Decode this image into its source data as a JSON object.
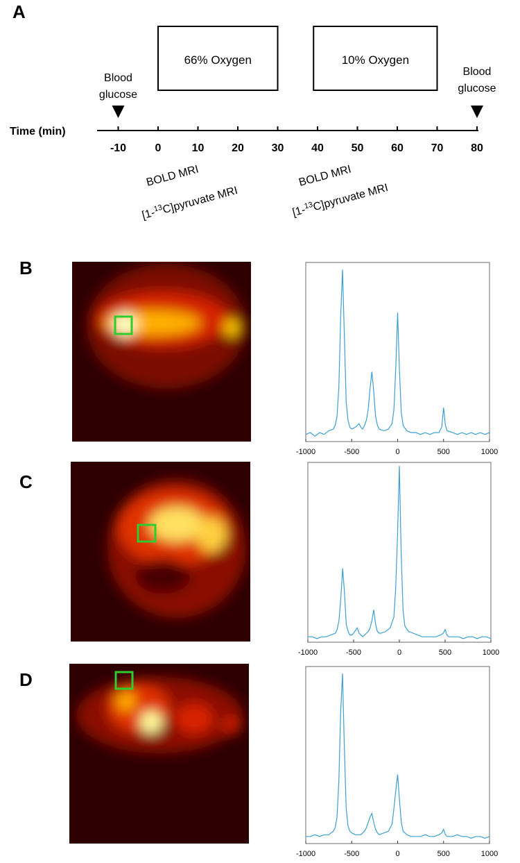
{
  "timeline": {
    "panel": "A",
    "axis_label": "Time (min)",
    "ticks": [
      -10,
      0,
      10,
      20,
      30,
      40,
      50,
      60,
      70,
      80
    ],
    "boxes": [
      {
        "label": "66% Oxygen",
        "start": 0,
        "end": 30
      },
      {
        "label": "10% Oxygen",
        "start": 39,
        "end": 70
      }
    ],
    "events": [
      {
        "label": [
          "Blood",
          "glucose"
        ],
        "time": -10
      },
      {
        "label": [
          "Blood",
          "glucose"
        ],
        "time": 80
      }
    ],
    "imaging": [
      {
        "bold": "BOLD MRI",
        "pyruvate": {
          "pre": "[1-",
          "sup": "13",
          "post": "C]pyruvate MRI"
        }
      },
      {
        "bold": "BOLD MRI",
        "pyruvate": {
          "pre": "[1-",
          "sup": "13",
          "post": "C]pyruvate MRI"
        }
      }
    ]
  },
  "chart_data": [
    {
      "type": "line",
      "panel": "B",
      "color": "#3a9fd4",
      "xlim": [
        -1000,
        1000
      ],
      "ylim": [
        0,
        100
      ],
      "xticks": [
        -1000,
        -500,
        0,
        500,
        1000
      ],
      "x": [
        -1000,
        -950,
        -900,
        -850,
        -800,
        -750,
        -700,
        -680,
        -660,
        -640,
        -620,
        -600,
        -580,
        -560,
        -540,
        -520,
        -500,
        -460,
        -440,
        -420,
        -400,
        -380,
        -360,
        -340,
        -320,
        -300,
        -280,
        -260,
        -240,
        -220,
        -200,
        -150,
        -100,
        -60,
        -40,
        -20,
        0,
        20,
        40,
        60,
        100,
        150,
        200,
        250,
        300,
        350,
        400,
        450,
        480,
        500,
        520,
        540,
        600,
        650,
        700,
        750,
        800,
        850,
        900,
        950,
        1000
      ],
      "values": [
        4,
        5,
        3,
        5,
        4,
        6,
        7,
        9,
        14,
        30,
        70,
        96,
        60,
        22,
        12,
        8,
        7,
        8,
        9,
        10,
        8,
        7,
        9,
        12,
        18,
        30,
        39,
        28,
        14,
        9,
        7,
        6,
        7,
        10,
        18,
        42,
        72,
        40,
        16,
        9,
        6,
        5,
        5,
        4,
        5,
        4,
        5,
        5,
        8,
        19,
        9,
        6,
        5,
        4,
        5,
        4,
        5,
        4,
        5,
        4,
        5
      ]
    },
    {
      "type": "line",
      "panel": "C",
      "color": "#3a9fd4",
      "xlim": [
        -1000,
        1000
      ],
      "ylim": [
        0,
        100
      ],
      "xticks": [
        -1000,
        -500,
        0,
        500,
        1000
      ],
      "x": [
        -1000,
        -950,
        -900,
        -850,
        -800,
        -750,
        -700,
        -680,
        -660,
        -640,
        -620,
        -600,
        -580,
        -560,
        -540,
        -520,
        -500,
        -460,
        -440,
        -420,
        -400,
        -380,
        -360,
        -340,
        -320,
        -300,
        -280,
        -260,
        -240,
        -220,
        -200,
        -150,
        -100,
        -60,
        -40,
        -20,
        0,
        20,
        40,
        60,
        100,
        150,
        200,
        250,
        300,
        350,
        400,
        450,
        480,
        500,
        520,
        540,
        600,
        650,
        700,
        750,
        800,
        850,
        900,
        950,
        1000
      ],
      "values": [
        3,
        3,
        2,
        3,
        3,
        4,
        5,
        7,
        12,
        24,
        41,
        28,
        10,
        6,
        4,
        4,
        5,
        8,
        5,
        4,
        3,
        4,
        5,
        6,
        8,
        12,
        18,
        10,
        6,
        5,
        5,
        6,
        8,
        14,
        30,
        60,
        98,
        50,
        18,
        9,
        6,
        5,
        4,
        3,
        3,
        3,
        3,
        4,
        5,
        7,
        4,
        3,
        3,
        3,
        2,
        3,
        3,
        2,
        3,
        3,
        2
      ]
    },
    {
      "type": "line",
      "panel": "D",
      "color": "#3a9fd4",
      "xlim": [
        -1000,
        1000
      ],
      "ylim": [
        0,
        100
      ],
      "xticks": [
        -1000,
        -500,
        0,
        500,
        1000
      ],
      "x": [
        -1000,
        -950,
        -900,
        -850,
        -800,
        -750,
        -700,
        -680,
        -660,
        -640,
        -620,
        -600,
        -580,
        -560,
        -540,
        -520,
        -500,
        -460,
        -440,
        -420,
        -400,
        -380,
        -360,
        -340,
        -320,
        -300,
        -280,
        -260,
        -240,
        -220,
        -200,
        -150,
        -100,
        -60,
        -40,
        -20,
        0,
        20,
        40,
        60,
        100,
        150,
        200,
        250,
        300,
        350,
        400,
        450,
        480,
        500,
        520,
        540,
        600,
        650,
        700,
        750,
        800,
        850,
        900,
        950,
        1000
      ],
      "values": [
        4,
        4,
        5,
        4,
        5,
        5,
        7,
        9,
        15,
        35,
        75,
        96,
        55,
        20,
        10,
        7,
        6,
        5,
        5,
        5,
        5,
        6,
        7,
        9,
        12,
        15,
        17,
        12,
        8,
        6,
        5,
        6,
        7,
        11,
        20,
        30,
        39,
        25,
        12,
        7,
        5,
        4,
        4,
        4,
        5,
        4,
        4,
        5,
        6,
        8,
        5,
        4,
        4,
        5,
        4,
        4,
        3,
        4,
        4,
        3,
        4
      ]
    }
  ]
}
